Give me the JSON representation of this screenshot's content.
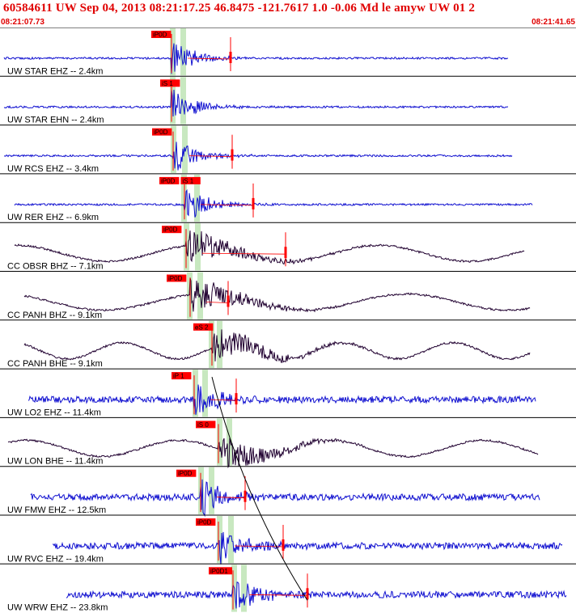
{
  "header": {
    "title": "60584611 UW Sep 04, 2013 08:21:17.25   46.8475 -121.7617  1.0 -0.06 Md le amyw UW 01   2",
    "start_time": "08:21:07.73",
    "end_time": "08:21:41.65"
  },
  "colors": {
    "accent": "#e00000",
    "uw_trace": "#1010d0",
    "cc_trace": "#200030",
    "window": "#c8e8c0",
    "pick_flag": "#ff0000"
  },
  "chart_data": {
    "type": "line",
    "title": "60584611 UW Sep 04, 2013 08:21:17.25   46.8475 -121.7617  1.0 -0.06 Md le amyw UW 01   2",
    "x_range": [
      "08:21:07.73",
      "08:21:41.65"
    ],
    "traces": [
      {
        "label": "UW STAR EHZ -- 2.4km",
        "picks": [
          "iP0D"
        ],
        "network": "UW",
        "style": "hf"
      },
      {
        "label": "UW STAR EHN -- 2.4km",
        "picks": [
          "iS 1"
        ],
        "network": "UW",
        "style": "hf"
      },
      {
        "label": "UW RCS EHZ -- 3.4km",
        "picks": [
          "iP0D"
        ],
        "network": "UW",
        "style": "hf"
      },
      {
        "label": "UW RER EHZ -- 6.9km",
        "picks": [
          "iP0D",
          "iS 1"
        ],
        "network": "UW",
        "style": "hf"
      },
      {
        "label": "CC OBSR BHZ -- 7.1km",
        "picks": [
          "iP0D"
        ],
        "network": "CC",
        "style": "lf"
      },
      {
        "label": "CC PANH BHZ -- 9.1km",
        "picks": [
          "iP0D"
        ],
        "network": "CC",
        "style": "lf"
      },
      {
        "label": "CC PANH BHE -- 9.1km",
        "picks": [
          "eS 2"
        ],
        "network": "CC",
        "style": "lf"
      },
      {
        "label": "UW LO2 EHZ -- 11.4km",
        "picks": [
          "iP 1"
        ],
        "network": "UW",
        "style": "hf"
      },
      {
        "label": "UW LON BHE -- 11.4km",
        "picks": [
          "iS 0"
        ],
        "network": "UW",
        "style": "lf"
      },
      {
        "label": "UW FMW EHZ -- 12.5km",
        "picks": [
          "iP0D"
        ],
        "network": "UW",
        "style": "hf"
      },
      {
        "label": "UW RVC EHZ -- 19.4km",
        "picks": [
          "iP0D"
        ],
        "network": "UW",
        "style": "hf"
      },
      {
        "label": "UW WRW EHZ -- 23.8km",
        "picks": [
          "iP0D1"
        ],
        "network": "UW",
        "style": "hf"
      }
    ]
  }
}
